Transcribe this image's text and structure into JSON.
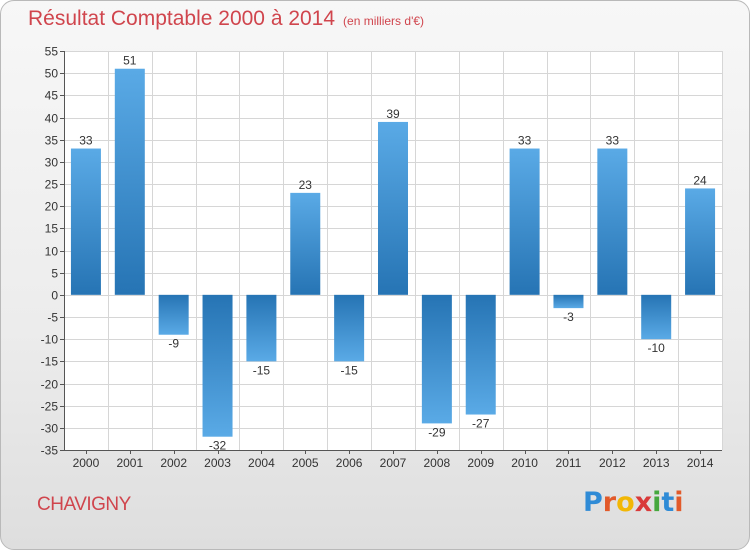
{
  "header": {
    "title": "Résultat Comptable 2000 à 2014",
    "subtitle": "(en milliers d'€)"
  },
  "footer": {
    "commune": "CHAVIGNY",
    "logo_text": "Proxiti",
    "logo_colors": [
      "#2f8bd6",
      "#e25a2a",
      "#f2b705",
      "#d93a3a",
      "#46a83d",
      "#2f8bd6",
      "#e25a2a"
    ]
  },
  "colors": {
    "title": "#d0454d",
    "bar_light": "#5aaae6",
    "bar_dark": "#2674b4",
    "grid": "#d6d6d6"
  },
  "chart_data": {
    "type": "bar",
    "title": "Résultat Comptable 2000 à 2014",
    "subtitle": "(en milliers d'€)",
    "categories": [
      "2000",
      "2001",
      "2002",
      "2003",
      "2004",
      "2005",
      "2006",
      "2007",
      "2008",
      "2009",
      "2010",
      "2011",
      "2012",
      "2013",
      "2014"
    ],
    "values": [
      33,
      51,
      -9,
      -32,
      -15,
      23,
      -15,
      39,
      -29,
      -27,
      33,
      -3,
      33,
      -10,
      24
    ],
    "ylim": [
      -35,
      55
    ],
    "yticks": [
      55,
      50,
      45,
      40,
      35,
      30,
      25,
      20,
      15,
      10,
      5,
      0,
      -5,
      -10,
      -15,
      -20,
      -25,
      -30,
      -35
    ],
    "grid": true,
    "xlabel": "",
    "ylabel": ""
  }
}
